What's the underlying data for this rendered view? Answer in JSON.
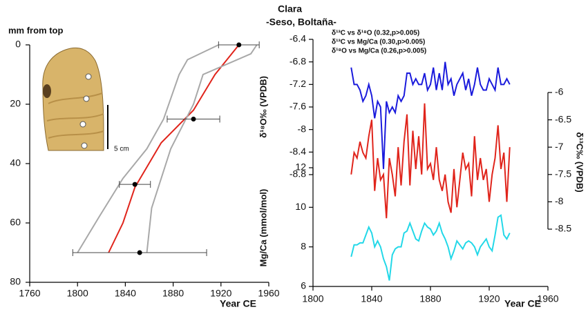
{
  "chart_data": [
    {
      "type": "age-depth",
      "y_label": "mm from top",
      "x_label": "Year CE",
      "scale_label": "5 cm",
      "xlim": [
        1760,
        1960
      ],
      "xticks": [
        1760,
        1800,
        1840,
        1880,
        1920,
        1960
      ],
      "ylim": [
        0,
        80
      ],
      "yticks": [
        0,
        20,
        40,
        60,
        80
      ],
      "y_inverted": true,
      "series": [
        {
          "kind": "line",
          "color": "#e0241b",
          "x": [
            1826,
            1838,
            1848,
            1870,
            1897,
            1915,
            1935
          ],
          "values": [
            70,
            60,
            48,
            33,
            22,
            10,
            0
          ]
        },
        {
          "kind": "line",
          "color": "#a8a8a8",
          "x": [
            1800,
            1818,
            1838,
            1858,
            1872,
            1885,
            1892,
            1918
          ],
          "values": [
            70,
            58,
            45,
            35,
            25,
            10,
            5,
            0
          ]
        },
        {
          "kind": "line",
          "color": "#a8a8a8",
          "x": [
            1858,
            1862,
            1878,
            1897,
            1905,
            1945,
            1950
          ],
          "values": [
            70,
            55,
            35,
            20,
            10,
            3,
            0
          ]
        },
        {
          "kind": "points",
          "color": "#000000",
          "x": [
            1935,
            1897,
            1848,
            1852
          ],
          "values": [
            0,
            25,
            47,
            70
          ],
          "xerr": [
            17,
            22,
            13,
            56
          ]
        }
      ]
    },
    {
      "type": "multi-axis-line",
      "title": "Clara",
      "subtitle": "-Seso, Boltaña-",
      "annotations": [
        "δ¹³C vs δ¹⁸O      (0.32,p>0.005)",
        "δ¹³C vs  Mg/Ca (0.30,p>0.005)",
        "δ¹⁸O vs  Mg/Ca (0.26,p>0.005)"
      ],
      "x_label": "Year CE",
      "y_label": "δ¹⁸O‰ (VPDB)",
      "y2_label": "δ¹³C‰ (VPDB)",
      "y3_label": "Mg/Ca (mmol/mol)",
      "xlim": [
        1800,
        1960
      ],
      "xticks": [
        1800,
        1840,
        1880,
        1920,
        1960
      ],
      "ylim": [
        -8.8,
        -6.4
      ],
      "yticks": [
        -6.4,
        -6.8,
        -7.2,
        -7.6,
        -8,
        -8.4,
        -8.8
      ],
      "y2lim": [
        -8.5,
        -6
      ],
      "y2ticks": [
        -6,
        -6.5,
        -7,
        -7.5,
        -8,
        -8.5
      ],
      "y3lim": [
        6,
        12
      ],
      "y3ticks": [
        6,
        8,
        10,
        12
      ],
      "x": [
        1826,
        1828,
        1830,
        1832,
        1834,
        1836,
        1838,
        1840,
        1842,
        1844,
        1846,
        1848,
        1850,
        1852,
        1854,
        1856,
        1858,
        1860,
        1862,
        1864,
        1866,
        1868,
        1870,
        1872,
        1874,
        1876,
        1878,
        1880,
        1882,
        1884,
        1886,
        1888,
        1890,
        1892,
        1894,
        1896,
        1898,
        1900,
        1902,
        1904,
        1906,
        1908,
        1910,
        1912,
        1914,
        1916,
        1918,
        1920,
        1922,
        1924,
        1926,
        1928,
        1930,
        1932,
        1934
      ],
      "series": [
        {
          "axis": "y",
          "color": "#1a1adc",
          "values": [
            -6.9,
            -7.2,
            -7.2,
            -7.3,
            -7.5,
            -7.4,
            -7.2,
            -7.4,
            -7.8,
            -7.5,
            -7.6,
            -8.7,
            -7.5,
            -7.7,
            -7.6,
            -7.7,
            -7.4,
            -7.5,
            -7.4,
            -7.0,
            -7.0,
            -7.2,
            -7.1,
            -7.2,
            -7.2,
            -7.0,
            -7.3,
            -7.2,
            -6.9,
            -7.3,
            -7.0,
            -7.3,
            -6.8,
            -7.2,
            -7.1,
            -7.4,
            -7.2,
            -7.1,
            -7.0,
            -7.3,
            -7.1,
            -7.4,
            -7.2,
            -6.9,
            -7.2,
            -7.3,
            -7.3,
            -7.1,
            -7.2,
            -7.3,
            -6.9,
            -7.2,
            -7.2,
            -7.1,
            -7.2
          ]
        },
        {
          "axis": "y2",
          "color": "#e0241b",
          "values": [
            -7.5,
            -7.1,
            -7.2,
            -6.9,
            -7.1,
            -7.2,
            -6.8,
            -6.5,
            -7.8,
            -7.2,
            -7.6,
            -7.5,
            -8.3,
            -7.2,
            -7.5,
            -7.9,
            -7.0,
            -7.7,
            -6.9,
            -6.4,
            -7.7,
            -6.7,
            -7.4,
            -6.8,
            -7.5,
            -6.2,
            -7.4,
            -7.3,
            -7.6,
            -7.0,
            -7.6,
            -7.8,
            -7.5,
            -8.0,
            -8.2,
            -7.4,
            -8.1,
            -7.6,
            -7.1,
            -7.4,
            -7.3,
            -7.9,
            -6.8,
            -7.6,
            -7.2,
            -7.6,
            -7.4,
            -8.0,
            -7.5,
            -7.2,
            -6.6,
            -7.4,
            -7.1,
            -8.0,
            -7.0
          ]
        },
        {
          "axis": "y3",
          "color": "#22d8e8",
          "values": [
            7.5,
            8.1,
            8.1,
            8.2,
            8.2,
            8.6,
            9.0,
            8.7,
            8.0,
            8.3,
            8.0,
            7.4,
            7.0,
            6.3,
            7.6,
            7.9,
            8.0,
            8.0,
            8.7,
            8.8,
            9.2,
            8.8,
            8.4,
            8.3,
            8.8,
            9.2,
            9.0,
            8.9,
            8.6,
            8.8,
            9.2,
            8.7,
            8.4,
            8.0,
            7.4,
            7.8,
            8.3,
            8.1,
            7.9,
            8.2,
            8.3,
            8.2,
            8.0,
            7.6,
            8.0,
            8.2,
            8.4,
            8.0,
            7.8,
            8.6,
            9.5,
            9.6,
            8.6,
            8.4,
            8.7
          ]
        }
      ]
    }
  ]
}
